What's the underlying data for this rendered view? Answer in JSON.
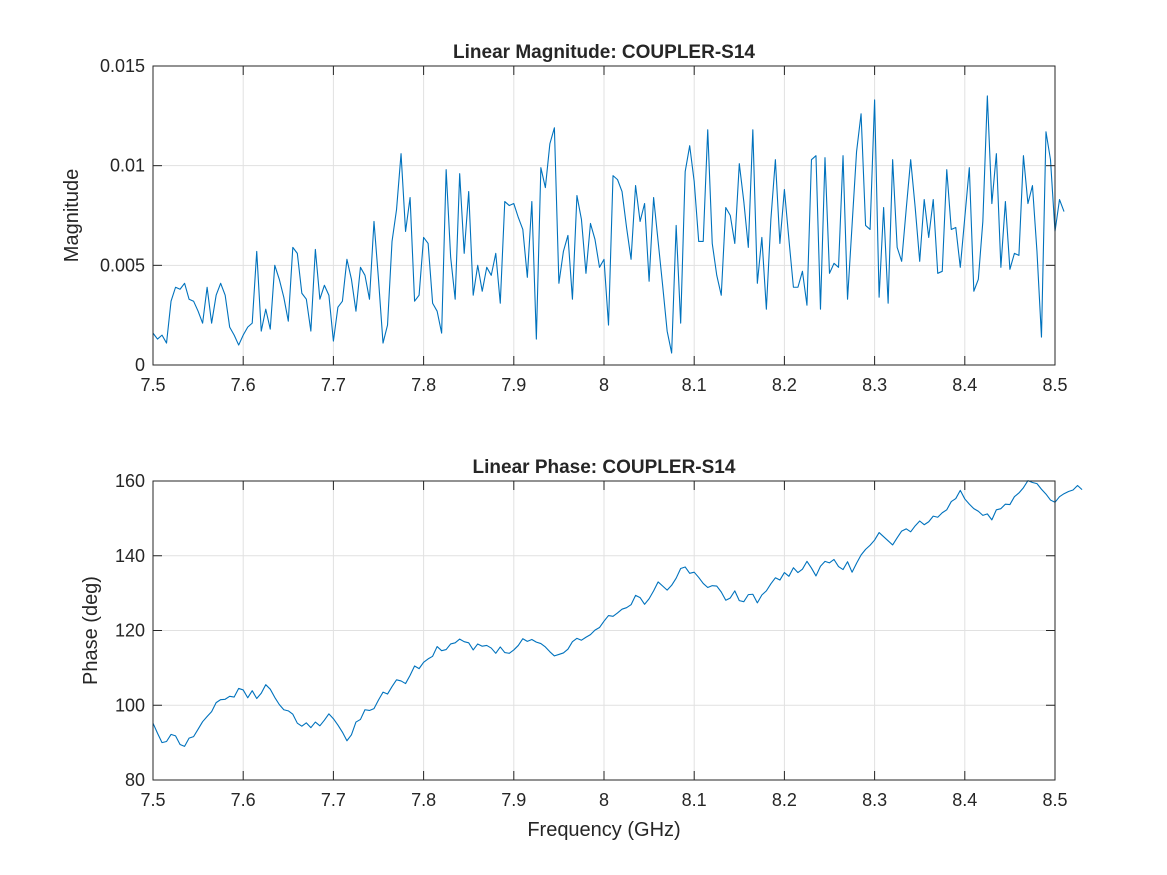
{
  "chart_data": [
    {
      "type": "line",
      "title": "Linear Magnitude: COUPLER-S14",
      "xlabel": "",
      "ylabel": "Magnitude",
      "xlim": [
        7.5,
        8.5
      ],
      "ylim": [
        0,
        0.015
      ],
      "xticks": [
        7.5,
        7.6,
        7.7,
        7.8,
        7.9,
        8,
        8.1,
        8.2,
        8.3,
        8.4,
        8.5
      ],
      "xtick_labels": [
        "7.5",
        "7.6",
        "7.7",
        "7.8",
        "7.9",
        "8",
        "8.1",
        "8.2",
        "8.3",
        "8.4",
        "8.5"
      ],
      "yticks": [
        0,
        0.005,
        0.01,
        0.015
      ],
      "ytick_labels": [
        "0",
        "0.005",
        "0.01",
        "0.015"
      ],
      "grid": true,
      "color": "#0072BD",
      "x_start": 7.5,
      "x_step": 0.005,
      "values": [
        0.0016,
        0.0013,
        0.0015,
        0.0011,
        0.0032,
        0.0039,
        0.0038,
        0.0041,
        0.0033,
        0.0032,
        0.0027,
        0.0021,
        0.0039,
        0.0021,
        0.0035,
        0.0041,
        0.0035,
        0.0019,
        0.0015,
        0.001,
        0.0015,
        0.0019,
        0.0021,
        0.0057,
        0.0017,
        0.0028,
        0.0018,
        0.005,
        0.0043,
        0.0034,
        0.0022,
        0.0059,
        0.0056,
        0.0036,
        0.0033,
        0.0017,
        0.0058,
        0.0033,
        0.004,
        0.0035,
        0.0012,
        0.0029,
        0.0032,
        0.0053,
        0.0043,
        0.0027,
        0.0049,
        0.0045,
        0.0033,
        0.0072,
        0.0043,
        0.0011,
        0.002,
        0.0062,
        0.0078,
        0.0106,
        0.0067,
        0.0084,
        0.0032,
        0.0035,
        0.0064,
        0.0061,
        0.0031,
        0.0027,
        0.0016,
        0.0098,
        0.0054,
        0.0033,
        0.0096,
        0.0056,
        0.0087,
        0.0035,
        0.005,
        0.0037,
        0.0049,
        0.0045,
        0.0056,
        0.0031,
        0.0082,
        0.008,
        0.0081,
        0.0074,
        0.0068,
        0.0044,
        0.0082,
        0.0013,
        0.0099,
        0.0089,
        0.0111,
        0.0119,
        0.0041,
        0.0057,
        0.0065,
        0.0033,
        0.0085,
        0.0073,
        0.0046,
        0.0071,
        0.0063,
        0.0049,
        0.0053,
        0.002,
        0.0095,
        0.0093,
        0.0087,
        0.0069,
        0.0053,
        0.009,
        0.0072,
        0.0081,
        0.0042,
        0.0084,
        0.0062,
        0.004,
        0.0017,
        0.0006,
        0.007,
        0.0021,
        0.0097,
        0.011,
        0.0092,
        0.0062,
        0.0062,
        0.0118,
        0.0061,
        0.0045,
        0.0035,
        0.0079,
        0.0075,
        0.0061,
        0.0101,
        0.0082,
        0.0059,
        0.0118,
        0.0041,
        0.0064,
        0.0028,
        0.0073,
        0.0103,
        0.0061,
        0.0088,
        0.0063,
        0.0039,
        0.0039,
        0.0047,
        0.003,
        0.0103,
        0.0105,
        0.0028,
        0.0104,
        0.0046,
        0.0051,
        0.0049,
        0.0105,
        0.0033,
        0.007,
        0.0107,
        0.0126,
        0.007,
        0.0068,
        0.0133,
        0.0034,
        0.0079,
        0.0031,
        0.0103,
        0.0059,
        0.0052,
        0.0078,
        0.0103,
        0.0079,
        0.0052,
        0.0083,
        0.0064,
        0.0083,
        0.0046,
        0.0047,
        0.0098,
        0.0068,
        0.0069,
        0.0049,
        0.0074,
        0.0099,
        0.0037,
        0.0043,
        0.0072,
        0.0135,
        0.0081,
        0.0106,
        0.0049,
        0.0082,
        0.0048,
        0.0056,
        0.0055,
        0.0105,
        0.0081,
        0.009,
        0.0057,
        0.0014,
        0.0117,
        0.0103,
        0.0067,
        0.0083,
        0.0077
      ]
    },
    {
      "type": "line",
      "title": "Linear Phase: COUPLER-S14",
      "xlabel": "Frequency (GHz)",
      "ylabel": "Phase (deg)",
      "xlim": [
        7.5,
        8.5
      ],
      "ylim": [
        80,
        160
      ],
      "xticks": [
        7.5,
        7.6,
        7.7,
        7.8,
        7.9,
        8,
        8.1,
        8.2,
        8.3,
        8.4,
        8.5
      ],
      "xtick_labels": [
        "7.5",
        "7.6",
        "7.7",
        "7.8",
        "7.9",
        "8",
        "8.1",
        "8.2",
        "8.3",
        "8.4",
        "8.5"
      ],
      "yticks": [
        80,
        100,
        120,
        140,
        160
      ],
      "ytick_labels": [
        "80",
        "100",
        "120",
        "140",
        "160"
      ],
      "grid": true,
      "color": "#0072BD",
      "x_start": 7.5,
      "x_step": 0.005,
      "values": [
        95.2,
        92.5,
        90.0,
        90.3,
        92.2,
        91.8,
        89.5,
        89.0,
        91.2,
        91.6,
        93.6,
        95.6,
        97.0,
        98.3,
        100.7,
        101.5,
        101.6,
        102.4,
        102.2,
        104.5,
        104.1,
        102.0,
        103.9,
        101.8,
        103.2,
        105.5,
        104.3,
        102.1,
        100.2,
        98.8,
        98.5,
        97.6,
        95.2,
        94.4,
        95.3,
        94.0,
        95.5,
        94.5,
        96.0,
        97.7,
        96.4,
        94.7,
        92.8,
        90.5,
        92.1,
        95.5,
        96.2,
        98.8,
        98.6,
        99.1,
        101.4,
        103.5,
        103.0,
        105.0,
        106.8,
        106.5,
        105.8,
        108.0,
        110.5,
        109.8,
        111.5,
        112.4,
        113.1,
        115.7,
        114.6,
        114.9,
        116.4,
        116.7,
        117.7,
        117.0,
        116.7,
        114.8,
        116.4,
        115.8,
        116.0,
        115.3,
        113.9,
        115.6,
        114.1,
        113.9,
        114.8,
        116.0,
        117.8,
        117.1,
        117.6,
        116.9,
        116.5,
        115.6,
        114.3,
        113.2,
        113.6,
        114.0,
        115.0,
        117.0,
        117.9,
        117.4,
        118.2,
        118.9,
        120.1,
        120.8,
        122.5,
        124.0,
        123.8,
        124.7,
        125.7,
        126.1,
        126.9,
        129.4,
        128.8,
        127.0,
        128.5,
        130.6,
        133.0,
        131.9,
        130.8,
        132.1,
        134.0,
        136.6,
        137.0,
        135.3,
        135.6,
        134.2,
        132.6,
        131.5,
        132.0,
        131.9,
        130.3,
        128.1,
        128.7,
        130.6,
        128.0,
        127.7,
        129.6,
        129.7,
        127.4,
        129.5,
        130.6,
        132.5,
        134.1,
        133.5,
        135.5,
        134.5,
        136.8,
        135.5,
        136.4,
        138.5,
        136.7,
        134.6,
        137.2,
        138.5,
        138.1,
        139.0,
        137.1,
        136.3,
        138.4,
        135.6,
        138.0,
        140.2,
        141.7,
        142.8,
        144.2,
        146.2,
        145.1,
        144.0,
        142.9,
        144.8,
        146.6,
        147.2,
        146.4,
        148.0,
        149.3,
        148.3,
        149.1,
        150.6,
        150.3,
        151.5,
        152.3,
        154.5,
        155.3,
        157.5,
        155.2,
        153.8,
        152.6,
        151.9,
        150.8,
        151.2,
        149.6,
        152.3,
        152.6,
        153.8,
        153.7,
        155.8,
        156.8,
        158.2,
        160.1,
        159.6,
        159.3,
        157.8,
        156.5,
        154.9,
        154.3,
        155.8,
        156.6,
        157.2,
        157.6,
        158.8,
        157.7
      ]
    }
  ]
}
